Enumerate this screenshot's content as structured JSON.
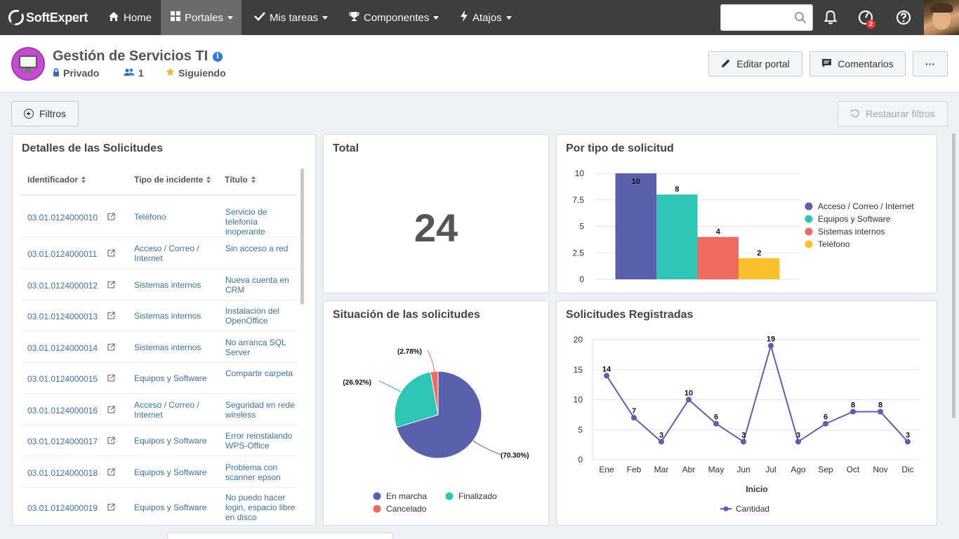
{
  "topnav": {
    "brand": "SoftExpert",
    "items": [
      {
        "label": "Home",
        "icon": "home-icon"
      },
      {
        "label": "Portales",
        "icon": "grid-icon"
      },
      {
        "label": "Mis tareas",
        "icon": "check-icon"
      },
      {
        "label": "Componentes",
        "icon": "trophy-icon"
      },
      {
        "label": "Atajos",
        "icon": "bolt-icon"
      }
    ],
    "search_placeholder": "",
    "notification_badge": "2"
  },
  "portal": {
    "title": "Gestión de Servicios TI",
    "privacy": "Privado",
    "members": "1",
    "following": "Siguiendo",
    "edit_label": "Editar portal",
    "comments_label": "Comentarios",
    "more_label": "···"
  },
  "filters": {
    "filters_label": "Filtros",
    "restore_label": "Restaurar filtros"
  },
  "requests_table": {
    "title": "Detalles de las Solicitudes",
    "columns": [
      "Identificador",
      "Tipo de incidente",
      "Título"
    ],
    "rows": [
      {
        "id": "03.01.0124000010",
        "type": "Teléfono",
        "title": "Servicio de telefonía inoperante"
      },
      {
        "id": "03.01.0124000011",
        "type": "Acceso / Correo / Internet",
        "title": "Sin acceso a red"
      },
      {
        "id": "03.01.0124000012",
        "type": "Sistemas internos",
        "title": "Nueva cuenta en CRM"
      },
      {
        "id": "03.01.0124000013",
        "type": "Sistemas internos",
        "title": "Instalación del OpenOffice"
      },
      {
        "id": "03.01.0124000014",
        "type": "Sistemas internos",
        "title": "No arranca SQL Server"
      },
      {
        "id": "03.01.0124000015",
        "type": "Equipos y Software",
        "title": "Compartir carpeta"
      },
      {
        "id": "03.01.0124000016",
        "type": "Acceso / Correo / Internet",
        "title": "Seguridad en rede wireless"
      },
      {
        "id": "03.01.0124000017",
        "type": "Equipos y Software",
        "title": "Error reinstalando WPS-Office"
      },
      {
        "id": "03.01.0124000018",
        "type": "Equipos y Software",
        "title": "Problema con scanner epson"
      },
      {
        "id": "03.01.0124000019",
        "type": "Equipos y Software",
        "title": "No puedo hacer login, espacio libre en disco"
      }
    ]
  },
  "total_card": {
    "title": "Total",
    "value": "24"
  },
  "chart_data": [
    {
      "type": "bar",
      "title": "Por tipo de solicitud",
      "series": [
        {
          "name": "Acceso / Correo / Internet",
          "values": [
            10
          ],
          "color": "#5b60ad"
        },
        {
          "name": "Equipos y Software",
          "values": [
            8
          ],
          "color": "#2ec4b6"
        },
        {
          "name": "Sistemas internos",
          "values": [
            4
          ],
          "color": "#ee6b62"
        },
        {
          "name": "Teléfono",
          "values": [
            2
          ],
          "color": "#fbc02d"
        }
      ],
      "ylim": [
        0,
        10
      ],
      "yticks": [
        "0",
        "2.5",
        "5",
        "7.5",
        "10"
      ],
      "data_labels": [
        "10",
        "8",
        "4",
        "2"
      ],
      "legend_position": "right",
      "grid": true
    },
    {
      "type": "pie",
      "title": "Situación de las solicitudes",
      "slices": [
        {
          "name": "En marcha",
          "value": 70.3,
          "label": "(70.30%)",
          "color": "#5b60ad"
        },
        {
          "name": "Finalizado",
          "value": 26.92,
          "label": "(26.92%)",
          "color": "#2ec4b6"
        },
        {
          "name": "Cancelado",
          "value": 2.78,
          "label": "(2.78%)",
          "color": "#ee6b62"
        }
      ],
      "legend_position": "bottom"
    },
    {
      "type": "line",
      "title": "Solicitudes Registradas",
      "xlabel": "Inicio",
      "categories": [
        "Ene",
        "Feb",
        "Mar",
        "Abr",
        "May",
        "Jun",
        "Jul",
        "Ago",
        "Sep",
        "Oct",
        "Nov",
        "Dic"
      ],
      "series": [
        {
          "name": "Cantidad",
          "values": [
            14,
            7,
            3,
            10,
            6,
            3,
            19,
            3,
            6,
            8,
            8,
            3
          ],
          "color": "#5b60ad"
        }
      ],
      "ylim": [
        0,
        20
      ],
      "yticks": [
        "0",
        "5",
        "10",
        "15",
        "20"
      ],
      "legend_position": "bottom",
      "grid": true
    }
  ]
}
